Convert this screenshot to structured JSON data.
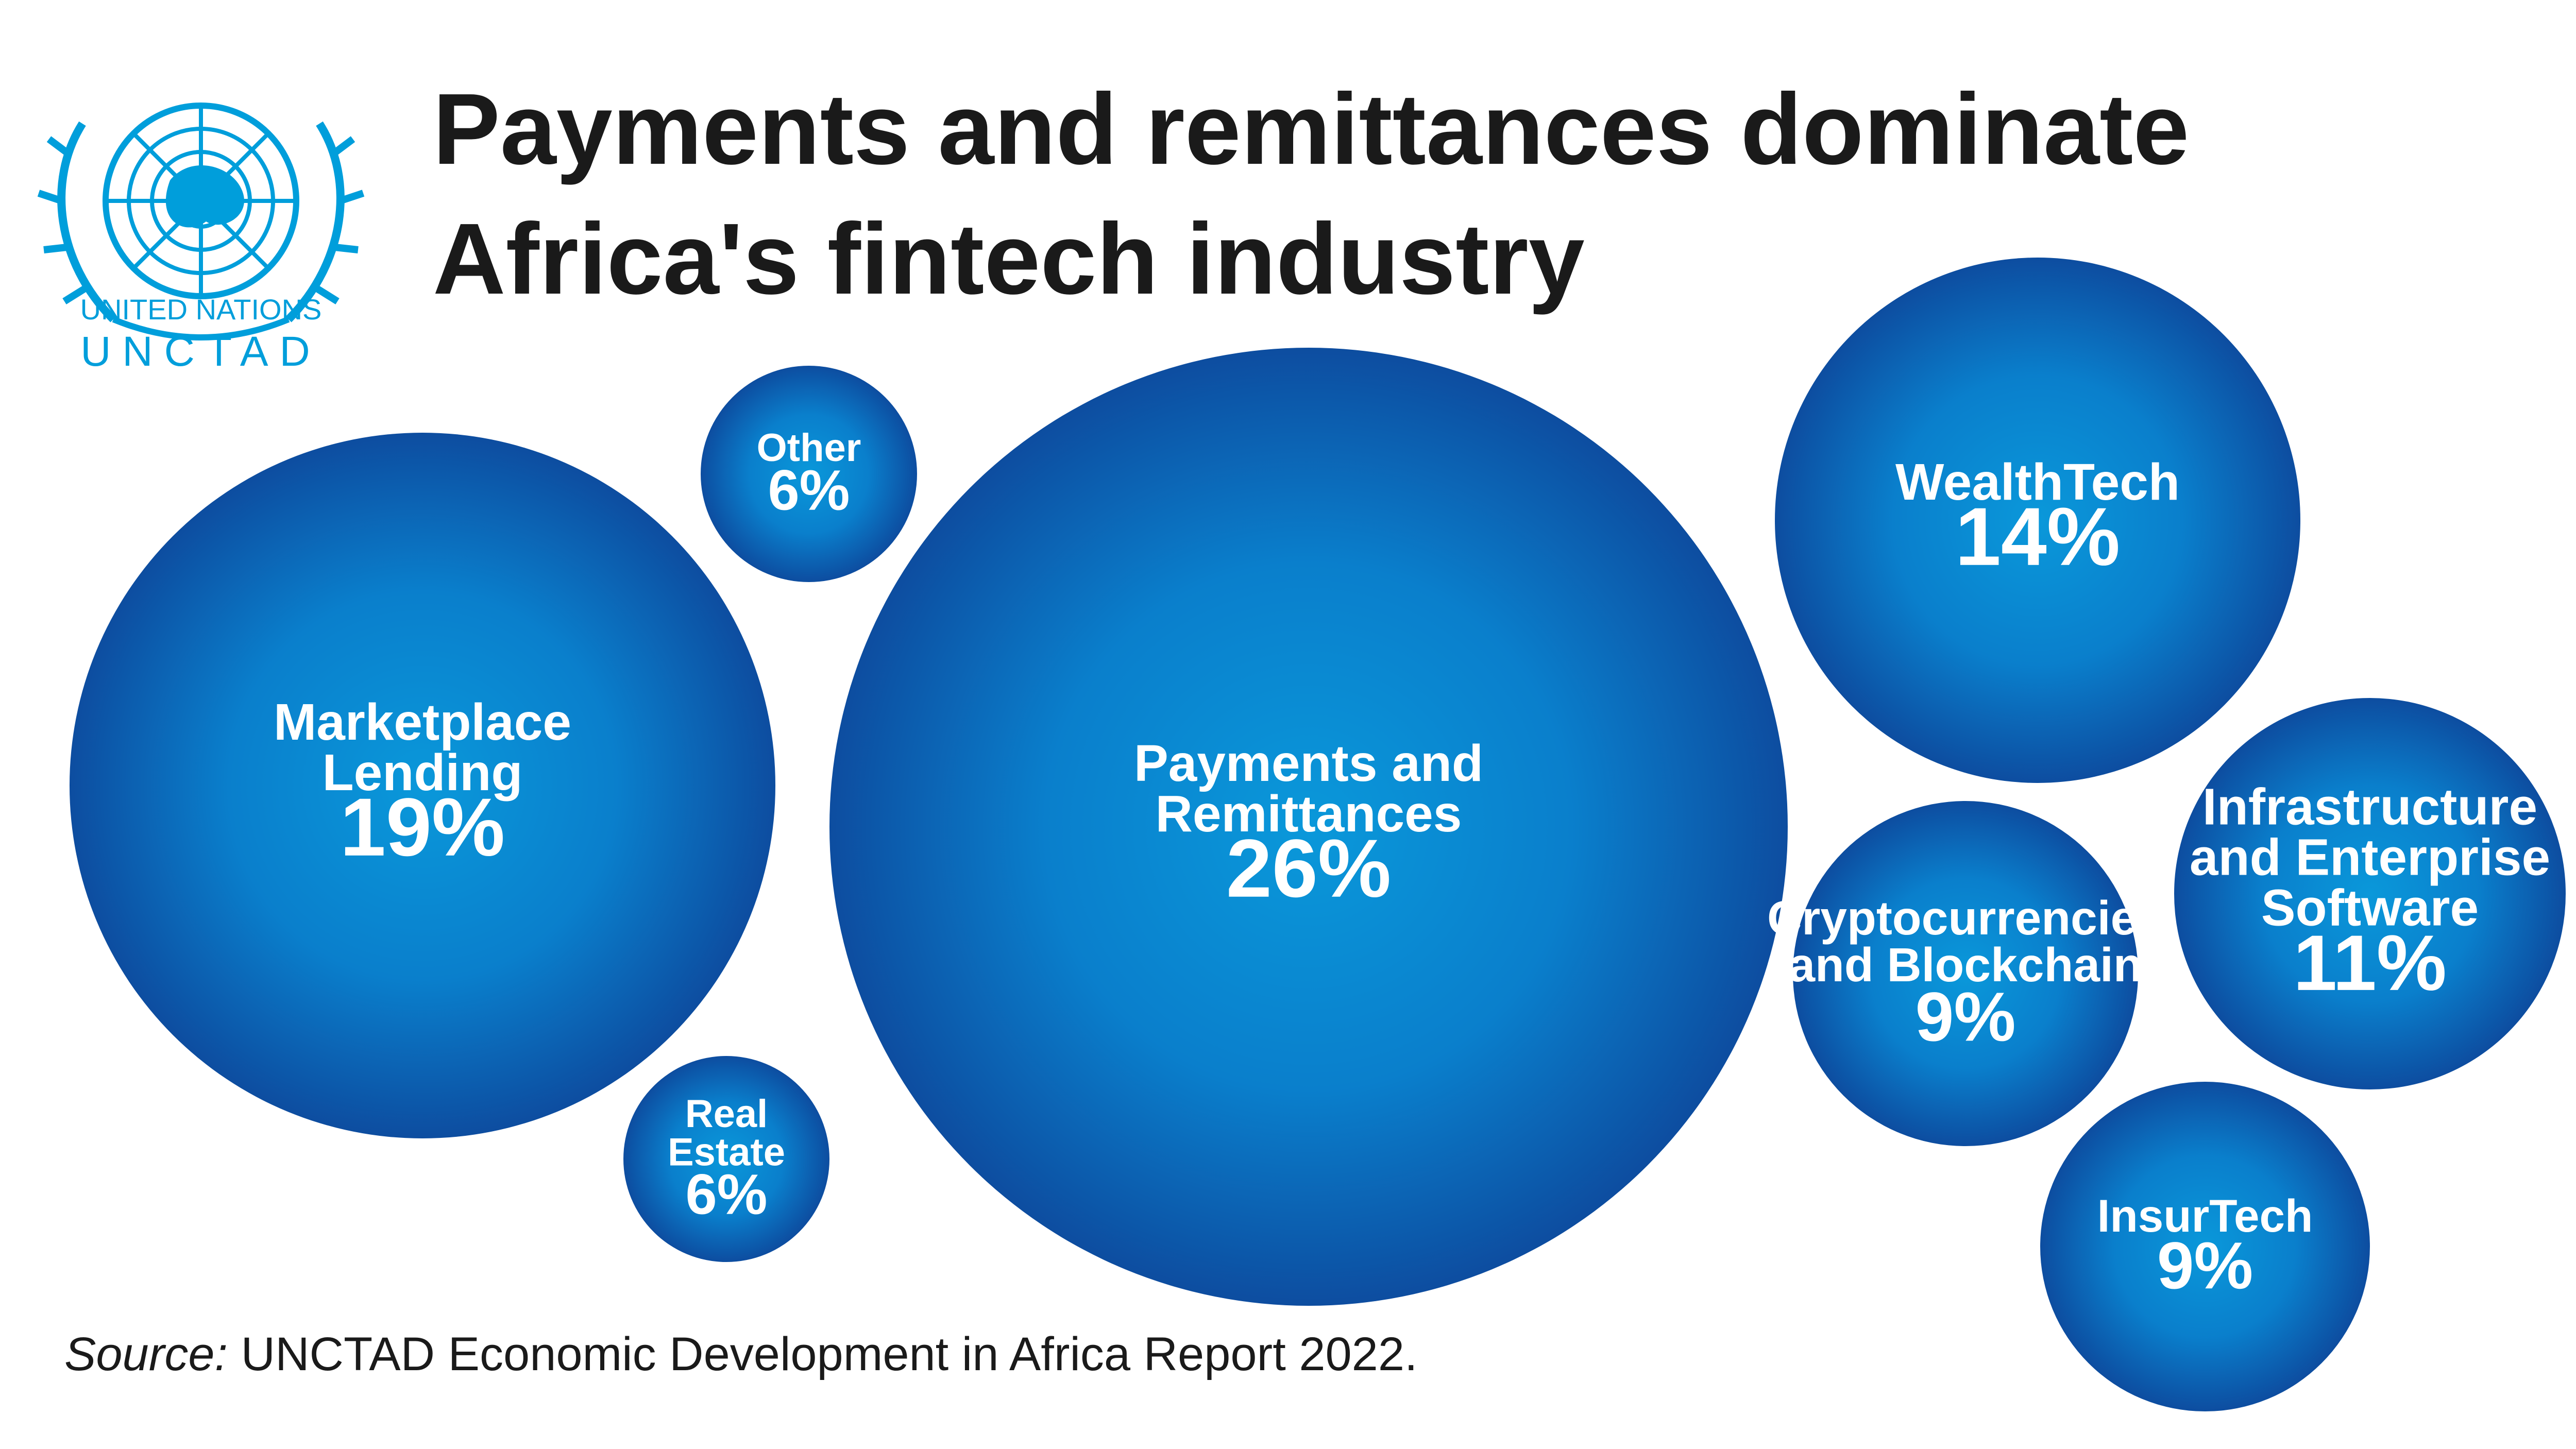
{
  "header": {
    "title_line1": "Payments and remittances dominate",
    "title_line2": "Africa's fintech industry"
  },
  "logo": {
    "icon": "un-emblem-icon",
    "line1": "UNITED NATIONS",
    "line2": "UNCTAD",
    "color": "#009edb"
  },
  "source": {
    "prefix": "Source:",
    "text": " UNCTAD Economic Development in Africa Report 2022."
  },
  "colors": {
    "bubble_center": "#0a98da",
    "bubble_edge": "#0d4da0",
    "label": "#ffffff",
    "title": "#1a1a1a"
  },
  "chart_data": {
    "type": "bubble",
    "value_unit": "%",
    "series": [
      {
        "label_lines": [
          "Payments and",
          "Remittances"
        ],
        "value": 26
      },
      {
        "label_lines": [
          "Marketplace",
          "Lending"
        ],
        "value": 19
      },
      {
        "label_lines": [
          "WealthTech"
        ],
        "value": 14
      },
      {
        "label_lines": [
          "Infrastructure",
          "and Enterprise",
          "Software"
        ],
        "value": 11
      },
      {
        "label_lines": [
          "Cryptocurrencies",
          "and Blockchain"
        ],
        "value": 9
      },
      {
        "label_lines": [
          "InsurTech"
        ],
        "value": 9
      },
      {
        "label_lines": [
          "Other"
        ],
        "value": 6
      },
      {
        "label_lines": [
          "Real",
          "Estate"
        ],
        "value": 6
      }
    ]
  }
}
